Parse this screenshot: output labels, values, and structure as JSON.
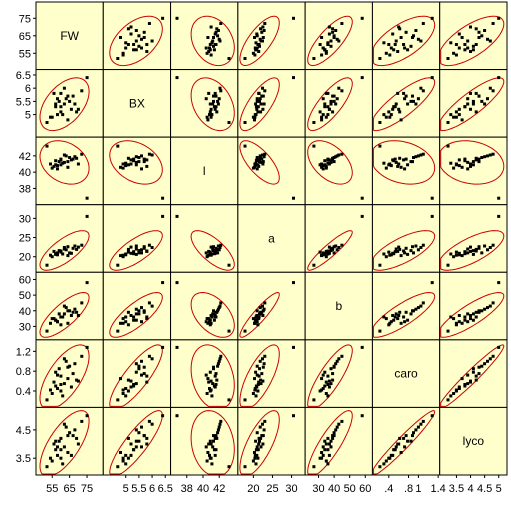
{
  "chart_data": {
    "type": "scatter",
    "variables": [
      "FW",
      "BX",
      "l",
      "a",
      "b",
      "caro",
      "lyco"
    ],
    "axis_ranges": {
      "FW": [
        48,
        82
      ],
      "BX": [
        4.3,
        6.55
      ],
      "l": [
        36.5,
        43.8
      ],
      "a": [
        17.0,
        32.5
      ],
      "b": [
        24.0,
        62.0
      ],
      "caro": [
        0.15,
        1.35
      ],
      "lyco": [
        3.05,
        5.15
      ]
    },
    "tick_labels": {
      "FW": [
        "55",
        "65",
        "75"
      ],
      "BX": [
        "5",
        "5.5",
        "6",
        "6.5"
      ],
      "l": [
        "38",
        "40",
        "42"
      ],
      "a": [
        "20",
        "25",
        "30"
      ],
      "b": [
        "30",
        "40",
        "50",
        "60"
      ],
      "caro": [
        ".4",
        ".8",
        "1.2"
      ],
      "lyco": [
        "3.5",
        "4",
        "4.5",
        "5"
      ]
    },
    "y_tick_labels": {
      "FW": [
        "55",
        "65",
        "75"
      ],
      "BX": [
        "5",
        "5.5",
        "6",
        "6.5"
      ],
      "l": [
        "38",
        "40",
        "42"
      ],
      "a": [
        "20",
        "25",
        "30"
      ],
      "b": [
        "30",
        "40",
        "50",
        "60"
      ],
      "caro": [
        "0.4",
        "0.8",
        "1.2"
      ],
      "lyco": [
        "3.5",
        "4.5"
      ]
    },
    "x_bottom_labels": {
      "FW": [
        "55",
        "65",
        "75"
      ],
      "BX": [
        "5",
        "5.5",
        "6",
        "6.5"
      ],
      "l": [
        "38",
        "40",
        "42"
      ],
      "a": [
        "20",
        "25",
        "30"
      ],
      "b": [
        "30",
        "40",
        "50",
        "60"
      ],
      "caro": [
        ".4",
        ".8",
        "1",
        "1.4"
      ],
      "lyco": [
        "3.5",
        "4",
        "4.5",
        "5"
      ]
    },
    "observations": [
      {
        "FW": 60,
        "BX": 5.8,
        "l": 41.5,
        "a": 21.5,
        "b": 36,
        "caro": 0.7,
        "lyco": 4.2
      },
      {
        "FW": 62,
        "BX": 5.4,
        "l": 41.2,
        "a": 22.0,
        "b": 38,
        "caro": 0.55,
        "lyco": 3.9
      },
      {
        "FW": 58,
        "BX": 5.0,
        "l": 40.8,
        "a": 20.5,
        "b": 33,
        "caro": 0.45,
        "lyco": 3.6
      },
      {
        "FW": 65,
        "BX": 5.5,
        "l": 41.8,
        "a": 21.0,
        "b": 40,
        "caro": 0.9,
        "lyco": 4.4
      },
      {
        "FW": 55,
        "BX": 4.9,
        "l": 40.5,
        "a": 20.0,
        "b": 35,
        "caro": 0.35,
        "lyco": 3.4
      },
      {
        "FW": 70,
        "BX": 5.2,
        "l": 41.0,
        "a": 22.5,
        "b": 37,
        "caro": 0.6,
        "lyco": 4.0
      },
      {
        "FW": 63,
        "BX": 5.6,
        "l": 42.0,
        "a": 21.8,
        "b": 42,
        "caro": 1.0,
        "lyco": 4.6
      },
      {
        "FW": 57,
        "BX": 5.3,
        "l": 41.4,
        "a": 20.8,
        "b": 34,
        "caro": 0.5,
        "lyco": 3.8
      },
      {
        "FW": 67,
        "BX": 5.7,
        "l": 41.6,
        "a": 22.2,
        "b": 39,
        "caro": 0.75,
        "lyco": 4.3
      },
      {
        "FW": 60,
        "BX": 5.1,
        "l": 40.9,
        "a": 21.2,
        "b": 31,
        "caro": 0.4,
        "lyco": 3.5
      },
      {
        "FW": 72,
        "BX": 5.9,
        "l": 42.2,
        "a": 23.0,
        "b": 45,
        "caro": 1.1,
        "lyco": 4.8
      },
      {
        "FW": 64,
        "BX": 4.8,
        "l": 40.6,
        "a": 20.3,
        "b": 32,
        "caro": 0.65,
        "lyco": 3.7
      },
      {
        "FW": 59,
        "BX": 5.5,
        "l": 41.3,
        "a": 21.6,
        "b": 38,
        "caro": 0.85,
        "lyco": 4.1
      },
      {
        "FW": 61,
        "BX": 5.0,
        "l": 41.1,
        "a": 20.7,
        "b": 36,
        "caro": 0.3,
        "lyco": 3.3
      },
      {
        "FW": 68,
        "BX": 5.4,
        "l": 41.9,
        "a": 22.8,
        "b": 41,
        "caro": 0.95,
        "lyco": 4.5
      },
      {
        "FW": 56,
        "BX": 5.8,
        "l": 40.7,
        "a": 21.4,
        "b": 35,
        "caro": 0.58,
        "lyco": 4.0
      },
      {
        "FW": 66,
        "BX": 5.2,
        "l": 41.5,
        "a": 20.9,
        "b": 37,
        "caro": 0.48,
        "lyco": 3.6
      },
      {
        "FW": 62,
        "BX": 6.0,
        "l": 42.1,
        "a": 22.4,
        "b": 43,
        "caro": 1.05,
        "lyco": 4.7
      },
      {
        "FW": 58,
        "BX": 5.6,
        "l": 40.4,
        "a": 21.0,
        "b": 33,
        "caro": 0.72,
        "lyco": 3.9
      },
      {
        "FW": 69,
        "BX": 5.1,
        "l": 41.7,
        "a": 21.9,
        "b": 39,
        "caro": 0.62,
        "lyco": 4.2
      },
      {
        "FW": 54,
        "BX": 4.9,
        "l": 41.0,
        "a": 20.4,
        "b": 32,
        "caro": 0.42,
        "lyco": 3.5
      },
      {
        "FW": 64,
        "BX": 5.7,
        "l": 41.3,
        "a": 22.6,
        "b": 40,
        "caro": 0.88,
        "lyco": 4.3
      },
      {
        "FW": 60,
        "BX": 5.3,
        "l": 41.6,
        "a": 21.3,
        "b": 36,
        "caro": 0.53,
        "lyco": 3.8
      },
      {
        "FW": 57,
        "BX": 5.4,
        "l": 40.9,
        "a": 20.6,
        "b": 34,
        "caro": 0.78,
        "lyco": 4.1
      },
      {
        "FW": 75,
        "BX": 6.4,
        "l": 36.8,
        "a": 30.5,
        "b": 58,
        "caro": 1.28,
        "lyco": 5.0
      },
      {
        "FW": 52,
        "BX": 4.7,
        "l": 43.2,
        "a": 17.8,
        "b": 27,
        "caro": 0.22,
        "lyco": 3.2
      }
    ],
    "ellipse_color": "#cc0000",
    "point_color": "#000000",
    "panel_background": "#ffffcc",
    "panel_border_color": "#000000",
    "grid": false
  }
}
